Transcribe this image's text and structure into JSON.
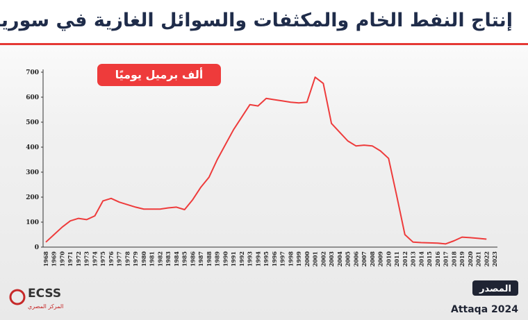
{
  "chart_data": {
    "type": "line",
    "title": "إنتاج النفط الخام والمكثفات والسوائل الغازية في سوريا",
    "unit_label": "ألف برميل يوميًا",
    "source_label": "المصدر",
    "source": "Attaqa 2024",
    "logo": "ECSS",
    "logo_subtitle": "المركز المصري",
    "categories": [
      "1968",
      "1969",
      "1970",
      "1971",
      "1972",
      "1973",
      "1974",
      "1975",
      "1976",
      "1977",
      "1978",
      "1979",
      "1980",
      "1981",
      "1982",
      "1983",
      "1984",
      "1985",
      "1986",
      "1987",
      "1988",
      "1989",
      "1990",
      "1991",
      "1992",
      "1993",
      "1994",
      "1995",
      "1996",
      "1997",
      "1998",
      "1999",
      "2000",
      "2001",
      "2002",
      "2003",
      "2004",
      "2005",
      "2006",
      "2007",
      "2008",
      "2009",
      "2010",
      "2011",
      "2012",
      "2013",
      "2014",
      "2015",
      "2016",
      "2017",
      "2018",
      "2019",
      "2020",
      "2021",
      "2022",
      "2023"
    ],
    "series": [
      {
        "name": "ألف برميل يوميًا",
        "color": "#ee3b3b",
        "values": [
          20,
          50,
          80,
          105,
          115,
          110,
          125,
          185,
          195,
          180,
          170,
          160,
          152,
          152,
          152,
          157,
          160,
          150,
          190,
          240,
          280,
          350,
          410,
          470,
          520,
          570,
          565,
          595,
          590,
          585,
          580,
          577,
          580,
          680,
          655,
          495,
          460,
          425,
          405,
          408,
          405,
          385,
          355,
          205,
          50,
          20,
          18,
          17,
          16,
          13,
          25,
          40,
          38,
          35,
          32,
          null
        ]
      }
    ],
    "ylim": [
      0,
      700
    ],
    "yticks": [
      0,
      100,
      200,
      300,
      400,
      500,
      600,
      700
    ],
    "grid": false
  }
}
